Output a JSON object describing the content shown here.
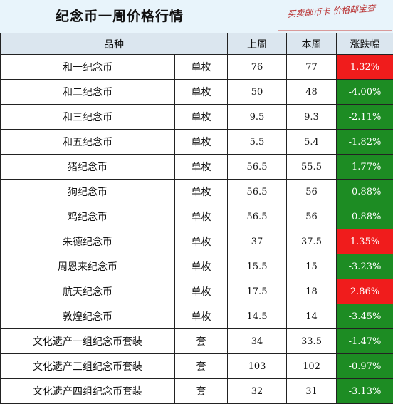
{
  "title": "纪念币一周价格行情",
  "brand_text": "买卖邮币卡 价格邮宝查",
  "headers": {
    "variety": "品种",
    "last_week": "上周",
    "this_week": "本周",
    "change": "涨跌幅"
  },
  "colors": {
    "up": "#f01c1c",
    "down": "#1d8c23",
    "header_bg": "#dbe6ef"
  },
  "rows": [
    {
      "name": "和一纪念币",
      "unit": "单枚",
      "last": "76",
      "now": "77",
      "change": "1.32%",
      "trend": "up"
    },
    {
      "name": "和二纪念币",
      "unit": "单枚",
      "last": "50",
      "now": "48",
      "change": "-4.00%",
      "trend": "down"
    },
    {
      "name": "和三纪念币",
      "unit": "单枚",
      "last": "9.5",
      "now": "9.3",
      "change": "-2.11%",
      "trend": "down"
    },
    {
      "name": "和五纪念币",
      "unit": "单枚",
      "last": "5.5",
      "now": "5.4",
      "change": "-1.82%",
      "trend": "down"
    },
    {
      "name": "猪纪念币",
      "unit": "单枚",
      "last": "56.5",
      "now": "55.5",
      "change": "-1.77%",
      "trend": "down"
    },
    {
      "name": "狗纪念币",
      "unit": "单枚",
      "last": "56.5",
      "now": "56",
      "change": "-0.88%",
      "trend": "down"
    },
    {
      "name": "鸡纪念币",
      "unit": "单枚",
      "last": "56.5",
      "now": "56",
      "change": "-0.88%",
      "trend": "down"
    },
    {
      "name": "朱德纪念币",
      "unit": "单枚",
      "last": "37",
      "now": "37.5",
      "change": "1.35%",
      "trend": "up"
    },
    {
      "name": "周恩来纪念币",
      "unit": "单枚",
      "last": "15.5",
      "now": "15",
      "change": "-3.23%",
      "trend": "down"
    },
    {
      "name": "航天纪念币",
      "unit": "单枚",
      "last": "17.5",
      "now": "18",
      "change": "2.86%",
      "trend": "up"
    },
    {
      "name": "敦煌纪念币",
      "unit": "单枚",
      "last": "14.5",
      "now": "14",
      "change": "-3.45%",
      "trend": "down"
    },
    {
      "name": "文化遗产一组纪念币套装",
      "unit": "套",
      "last": "34",
      "now": "33.5",
      "change": "-1.47%",
      "trend": "down"
    },
    {
      "name": "文化遗产三组纪念币套装",
      "unit": "套",
      "last": "103",
      "now": "102",
      "change": "-0.97%",
      "trend": "down"
    },
    {
      "name": "文化遗产四组纪念币套装",
      "unit": "套",
      "last": "32",
      "now": "31",
      "change": "-3.13%",
      "trend": "down"
    }
  ]
}
